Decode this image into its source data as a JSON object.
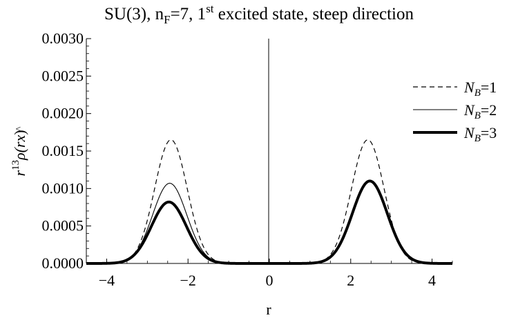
{
  "chart_data": {
    "type": "line",
    "title_parts": {
      "a": "SU(3), n",
      "a_sub": "F",
      "b": "=7, 1",
      "b_sup": "st",
      "c": " excited state, steep direction"
    },
    "xlabel": "r",
    "ylabel_parts": {
      "a": "r",
      "a_sup": "13",
      "b": "ρ(r",
      "b_hat": "x",
      "c": ")"
    },
    "xlim": [
      -4.5,
      4.5
    ],
    "ylim": [
      0,
      0.003
    ],
    "xticks": [
      -4,
      -2,
      0,
      2,
      4
    ],
    "xtick_labels": [
      "−4",
      "−2",
      "0",
      "2",
      "4"
    ],
    "yticks": [
      0,
      0.0005,
      0.001,
      0.0015,
      0.002,
      0.0025,
      0.003
    ],
    "ytick_labels": [
      "0.0000",
      "0.0005",
      "0.0010",
      "0.0015",
      "0.0020",
      "0.0025",
      "0.0030"
    ],
    "grid": false,
    "legend_position": "right",
    "series": [
      {
        "name_main": "N",
        "name_sub": "B",
        "name_rest": "=1",
        "style": "dashed",
        "color": "#000000",
        "peaks": [
          {
            "center": -2.42,
            "height": 0.00165,
            "width": 0.4
          },
          {
            "center": 2.42,
            "height": 0.00165,
            "width": 0.4
          }
        ]
      },
      {
        "name_main": "N",
        "name_sub": "B",
        "name_rest": "=2",
        "style": "thin",
        "color": "#000000",
        "peaks": [
          {
            "center": -2.45,
            "height": 0.00107,
            "width": 0.42
          },
          {
            "center": 2.46,
            "height": 0.00111,
            "width": 0.43
          }
        ]
      },
      {
        "name_main": "N",
        "name_sub": "B",
        "name_rest": "=3",
        "style": "thick",
        "color": "#000000",
        "peaks": [
          {
            "center": -2.47,
            "height": 0.00082,
            "width": 0.43
          },
          {
            "center": 2.47,
            "height": 0.0011,
            "width": 0.43
          }
        ]
      }
    ]
  }
}
